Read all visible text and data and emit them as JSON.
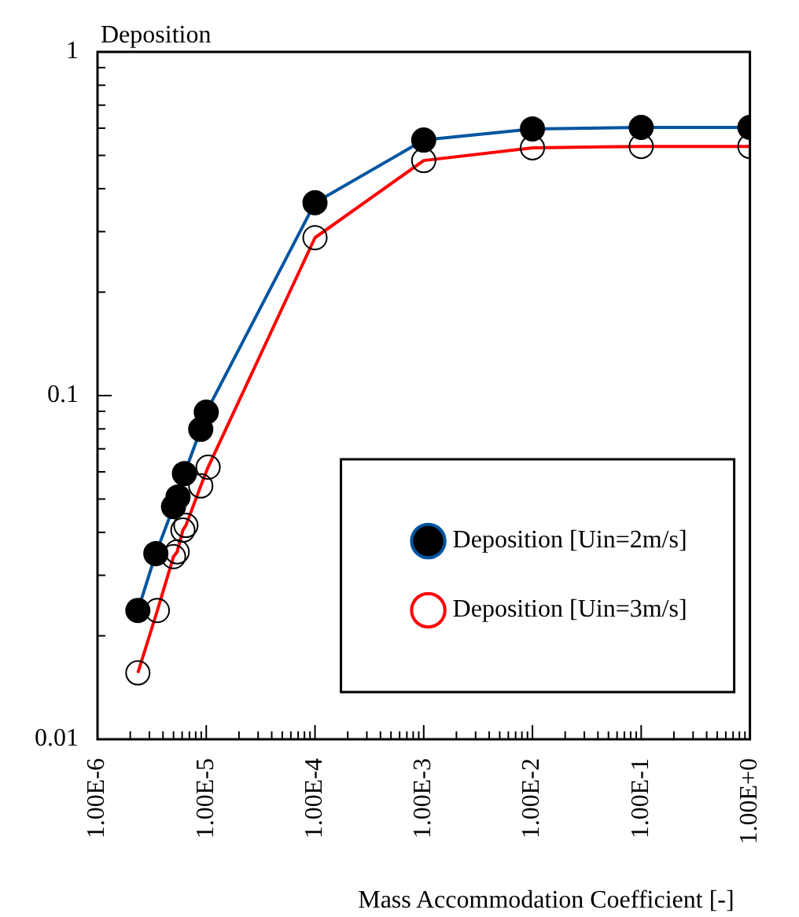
{
  "chart_data": {
    "type": "line",
    "ylabel": "Deposition",
    "xlabel": "Mass Accommodation Coefficient [-]",
    "log": "xy",
    "grid": false,
    "legend": "bottom right",
    "marker": "circle",
    "line_style": "solid",
    "xlim": [
      1e-06,
      1
    ],
    "ylim": [
      0.01,
      1
    ],
    "xticks": [
      {
        "value": 1e-06,
        "label": "1.00E-6"
      },
      {
        "value": 2e-06,
        "label": null
      },
      {
        "value": 3e-06,
        "label": null
      },
      {
        "value": 4e-06,
        "label": null
      },
      {
        "value": 5e-06,
        "label": null
      },
      {
        "value": 6e-06,
        "label": null
      },
      {
        "value": 7e-06,
        "label": null
      },
      {
        "value": 8e-06,
        "label": null
      },
      {
        "value": 9e-06,
        "label": null
      },
      {
        "value": 1e-05,
        "label": "1.00E-5"
      },
      {
        "value": 2e-05,
        "label": null
      },
      {
        "value": 3e-05,
        "label": null
      },
      {
        "value": 4e-05,
        "label": null
      },
      {
        "value": 5e-05,
        "label": null
      },
      {
        "value": 6e-05,
        "label": null
      },
      {
        "value": 7e-05,
        "label": null
      },
      {
        "value": 8e-05,
        "label": null
      },
      {
        "value": 9e-05,
        "label": null
      },
      {
        "value": 0.0001,
        "label": "1.00E-4"
      },
      {
        "value": 0.0002,
        "label": null
      },
      {
        "value": 0.0003,
        "label": null
      },
      {
        "value": 0.0004,
        "label": null
      },
      {
        "value": 0.0005,
        "label": null
      },
      {
        "value": 0.0006,
        "label": null
      },
      {
        "value": 0.0007,
        "label": null
      },
      {
        "value": 0.0008,
        "label": null
      },
      {
        "value": 0.0009,
        "label": null
      },
      {
        "value": 0.001,
        "label": "1.00E-3"
      },
      {
        "value": 0.002,
        "label": null
      },
      {
        "value": 0.003,
        "label": null
      },
      {
        "value": 0.004,
        "label": null
      },
      {
        "value": 0.005,
        "label": null
      },
      {
        "value": 0.006,
        "label": null
      },
      {
        "value": 0.007,
        "label": null
      },
      {
        "value": 0.008,
        "label": null
      },
      {
        "value": 0.009,
        "label": null
      },
      {
        "value": 0.01,
        "label": "1.00E-2"
      },
      {
        "value": 0.02,
        "label": null
      },
      {
        "value": 0.03,
        "label": null
      },
      {
        "value": 0.04,
        "label": null
      },
      {
        "value": 0.05,
        "label": null
      },
      {
        "value": 0.06,
        "label": null
      },
      {
        "value": 0.07,
        "label": null
      },
      {
        "value": 0.08,
        "label": null
      },
      {
        "value": 0.09,
        "label": null
      },
      {
        "value": 0.1,
        "label": "1.00E-1"
      },
      {
        "value": 0.2,
        "label": null
      },
      {
        "value": 0.3,
        "label": null
      },
      {
        "value": 0.4,
        "label": null
      },
      {
        "value": 0.5,
        "label": null
      },
      {
        "value": 0.6,
        "label": null
      },
      {
        "value": 0.7,
        "label": null
      },
      {
        "value": 0.8,
        "label": null
      },
      {
        "value": 0.9,
        "label": null
      },
      {
        "value": 1,
        "label": "1.00E+0"
      }
    ],
    "yticks": [
      0.01,
      {
        "value": 0.02,
        "label": null
      },
      {
        "value": 0.03,
        "label": null
      },
      {
        "value": 0.04,
        "label": null
      },
      {
        "value": 0.05,
        "label": null
      },
      {
        "value": 0.06,
        "label": null
      },
      {
        "value": 0.07,
        "label": null
      },
      {
        "value": 0.08,
        "label": null
      },
      {
        "value": 0.09,
        "label": null
      },
      0.1,
      {
        "value": 0.2,
        "label": null
      },
      {
        "value": 0.3,
        "label": null
      },
      {
        "value": 0.4,
        "label": null
      },
      {
        "value": 0.5,
        "label": null
      },
      {
        "value": 0.6,
        "label": null
      },
      {
        "value": 0.7,
        "label": null
      },
      {
        "value": 0.8,
        "label": null
      },
      {
        "value": 0.9,
        "label": null
      },
      1
    ],
    "series": [
      {
        "name": "Deposition [Uin=2m/s]",
        "color": "#0055a0",
        "x": [
          2.35e-06,
          3.44e-06,
          5e-06,
          5.5e-06,
          6.3e-06,
          8.9e-06,
          1e-05,
          0.0001,
          0.001,
          0.01,
          0.1,
          1
        ],
        "values": [
          0.0237,
          0.0347,
          0.0475,
          0.0507,
          0.0593,
          0.0798,
          0.0895,
          0.364,
          0.554,
          0.597,
          0.603,
          0.603
        ]
      },
      {
        "name": "Deposition [Uin=3m/s]",
        "color": "#ff0000",
        "x": [
          2.35e-06,
          3.55e-06,
          5e-06,
          5.4e-06,
          6.1e-06,
          6.5e-06,
          8.9e-06,
          1.04e-05,
          0.0001,
          0.001,
          0.01,
          0.1,
          1
        ],
        "values": [
          0.0156,
          0.0237,
          0.034,
          0.0351,
          0.0406,
          0.0419,
          0.0546,
          0.0619,
          0.288,
          0.483,
          0.526,
          0.531,
          0.531
        ]
      }
    ]
  }
}
